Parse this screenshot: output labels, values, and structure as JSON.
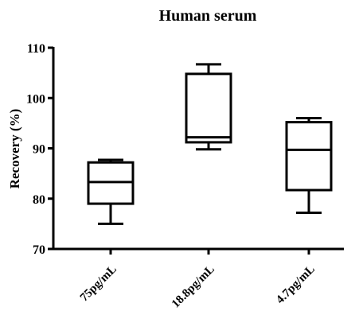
{
  "chart_data": {
    "type": "box",
    "title": "Human serum",
    "xlabel": "",
    "ylabel": "Recovery (%)",
    "ylim": [
      70,
      110
    ],
    "yticks": [
      70,
      80,
      90,
      100,
      110
    ],
    "grid": false,
    "categories": [
      "75pg/mL",
      "18.8pg/mL",
      "4.7pg/mL"
    ],
    "boxes": [
      {
        "category": "75pg/mL",
        "min": 75.0,
        "q1": 79.0,
        "median": 83.3,
        "q3": 87.2,
        "max": 87.7
      },
      {
        "category": "18.8pg/mL",
        "min": 89.8,
        "q1": 91.2,
        "median": 92.2,
        "q3": 104.8,
        "max": 106.7
      },
      {
        "category": "4.7pg/mL",
        "min": 77.2,
        "q1": 81.7,
        "median": 89.7,
        "q3": 95.2,
        "max": 96.0
      }
    ]
  }
}
